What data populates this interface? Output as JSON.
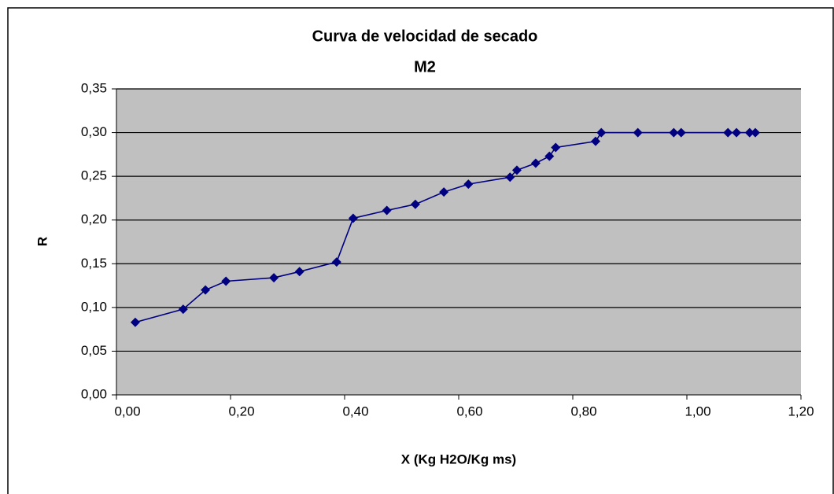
{
  "chart_data": {
    "type": "line",
    "title": "Curva de velocidad de secado",
    "subtitle": "M2",
    "xlabel": "X (Kg H2O/Kg ms)",
    "ylabel": "R",
    "x": [
      0.033,
      0.117,
      0.156,
      0.192,
      0.276,
      0.321,
      0.386,
      0.415,
      0.474,
      0.524,
      0.574,
      0.617,
      0.69,
      0.702,
      0.735,
      0.759,
      0.77,
      0.84,
      0.85,
      0.914,
      0.977,
      0.99,
      1.072,
      1.087,
      1.11,
      1.12
    ],
    "series": [
      {
        "name": "M2",
        "color": "#000080",
        "values": [
          0.083,
          0.098,
          0.12,
          0.13,
          0.134,
          0.141,
          0.152,
          0.202,
          0.211,
          0.218,
          0.232,
          0.241,
          0.249,
          0.257,
          0.265,
          0.273,
          0.283,
          0.29,
          0.3,
          0.3,
          0.3,
          0.3,
          0.3,
          0.3,
          0.3,
          0.3
        ]
      }
    ],
    "xlim": [
      0,
      1.2
    ],
    "xticks": [
      {
        "value": 0,
        "label": "0,00"
      },
      {
        "value": 0.2,
        "label": "0,20"
      },
      {
        "value": 0.4,
        "label": "0,40"
      },
      {
        "value": 0.6,
        "label": "0,60"
      },
      {
        "value": 0.8,
        "label": "0,80"
      },
      {
        "value": 1.0,
        "label": "1,00"
      },
      {
        "value": 1.2,
        "label": "1,20"
      }
    ],
    "ylim": [
      0,
      0.35
    ],
    "yticks": [
      {
        "value": 0,
        "label": "0,00"
      },
      {
        "value": 0.05,
        "label": "0,05"
      },
      {
        "value": 0.1,
        "label": "0,10"
      },
      {
        "value": 0.15,
        "label": "0,15"
      },
      {
        "value": 0.2,
        "label": "0,20"
      },
      {
        "value": 0.25,
        "label": "0,25"
      },
      {
        "value": 0.3,
        "label": "0,30"
      },
      {
        "value": 0.35,
        "label": "0,35"
      }
    ],
    "grid": true,
    "plot_background": "#c0c0c0"
  }
}
